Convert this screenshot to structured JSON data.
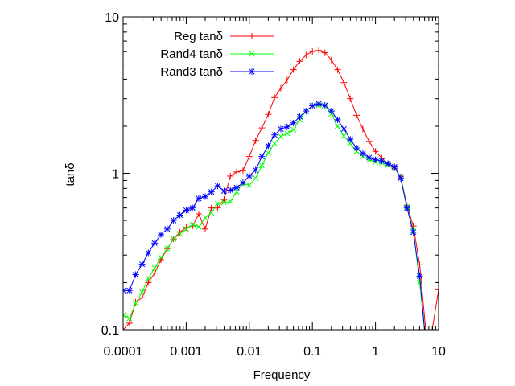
{
  "chart_data": {
    "type": "line",
    "xlabel": "Frequency",
    "ylabel": "tanδ",
    "x_scale": "log",
    "y_scale": "log",
    "xlim": [
      0.0001,
      10
    ],
    "ylim": [
      0.1,
      10
    ],
    "x_ticks": [
      {
        "value": 0.0001,
        "label": "0.0001"
      },
      {
        "value": 0.001,
        "label": "0.001"
      },
      {
        "value": 0.01,
        "label": "0.01"
      },
      {
        "value": 0.1,
        "label": "0.1"
      },
      {
        "value": 1,
        "label": "1"
      },
      {
        "value": 10,
        "label": "10"
      }
    ],
    "y_ticks": [
      {
        "value": 0.1,
        "label": "0.1"
      },
      {
        "value": 1,
        "label": "1"
      },
      {
        "value": 10,
        "label": "10"
      }
    ],
    "legend_position": "top-left",
    "grid": false,
    "series": [
      {
        "name": "Reg tanδ",
        "color": "#ff0000",
        "marker": "plus",
        "x": [
          0.0001,
          0.000126,
          0.000158,
          0.0002,
          0.000251,
          0.000316,
          0.000398,
          0.000501,
          0.000631,
          0.000794,
          0.001,
          0.00126,
          0.00158,
          0.002,
          0.00251,
          0.00316,
          0.00398,
          0.00501,
          0.00631,
          0.00794,
          0.01,
          0.0126,
          0.0158,
          0.02,
          0.0251,
          0.0316,
          0.0398,
          0.0501,
          0.0631,
          0.0794,
          0.1,
          0.126,
          0.158,
          0.2,
          0.251,
          0.316,
          0.398,
          0.501,
          0.631,
          0.794,
          1,
          1.26,
          1.58,
          2,
          2.51,
          3.16,
          3.98,
          5.01,
          6.31,
          7.94,
          10
        ],
        "y": [
          0.1,
          0.11,
          0.15,
          0.16,
          0.2,
          0.23,
          0.28,
          0.33,
          0.38,
          0.42,
          0.45,
          0.46,
          0.55,
          0.44,
          0.6,
          0.6,
          0.68,
          0.96,
          1.02,
          1.04,
          1.28,
          1.62,
          1.95,
          2.38,
          3.05,
          3.5,
          3.95,
          4.6,
          5.2,
          5.7,
          6.0,
          6.1,
          5.9,
          5.3,
          4.6,
          3.8,
          3.0,
          2.35,
          1.92,
          1.6,
          1.38,
          1.25,
          1.15,
          1.08,
          0.95,
          0.62,
          0.46,
          0.26,
          0.096,
          0.1,
          0.18
        ]
      },
      {
        "name": "Rand4 tanδ",
        "color": "#00ff00",
        "marker": "cross",
        "x": [
          0.0001,
          0.000126,
          0.000158,
          0.0002,
          0.000251,
          0.000316,
          0.000398,
          0.000501,
          0.000631,
          0.000794,
          0.001,
          0.00126,
          0.00158,
          0.002,
          0.00251,
          0.00316,
          0.00398,
          0.00501,
          0.00631,
          0.00794,
          0.01,
          0.0126,
          0.0158,
          0.02,
          0.0251,
          0.0316,
          0.0398,
          0.0501,
          0.0631,
          0.0794,
          0.1,
          0.126,
          0.158,
          0.2,
          0.251,
          0.316,
          0.398,
          0.501,
          0.631,
          0.794,
          1,
          1.26,
          1.58,
          2,
          2.51,
          3.16,
          3.98,
          5.01,
          6.31
        ],
        "y": [
          0.124,
          0.118,
          0.148,
          0.174,
          0.213,
          0.248,
          0.29,
          0.33,
          0.38,
          0.41,
          0.44,
          0.47,
          0.455,
          0.52,
          0.56,
          0.64,
          0.65,
          0.66,
          0.76,
          0.86,
          0.84,
          0.93,
          1.12,
          1.35,
          1.55,
          1.72,
          1.8,
          1.9,
          2.2,
          2.5,
          2.7,
          2.72,
          2.7,
          2.4,
          2.0,
          1.73,
          1.55,
          1.38,
          1.28,
          1.22,
          1.18,
          1.17,
          1.13,
          1.08,
          0.95,
          0.61,
          0.43,
          0.2,
          0.08
        ]
      },
      {
        "name": "Rand3 tanδ",
        "color": "#0000ff",
        "marker": "star",
        "x": [
          0.0001,
          0.000126,
          0.000158,
          0.0002,
          0.000251,
          0.000316,
          0.000398,
          0.000501,
          0.000631,
          0.000794,
          0.001,
          0.00126,
          0.00158,
          0.002,
          0.00251,
          0.00316,
          0.00398,
          0.00501,
          0.00631,
          0.00794,
          0.01,
          0.0126,
          0.0158,
          0.02,
          0.0251,
          0.0316,
          0.0398,
          0.0501,
          0.0631,
          0.0794,
          0.1,
          0.126,
          0.158,
          0.2,
          0.251,
          0.316,
          0.398,
          0.501,
          0.631,
          0.794,
          1,
          1.26,
          1.58,
          2,
          2.51,
          3.16,
          3.98,
          5.01,
          6.31
        ],
        "y": [
          0.178,
          0.178,
          0.225,
          0.262,
          0.31,
          0.358,
          0.405,
          0.44,
          0.5,
          0.54,
          0.58,
          0.6,
          0.69,
          0.71,
          0.76,
          0.83,
          0.77,
          0.78,
          0.81,
          0.87,
          0.96,
          1.05,
          1.28,
          1.5,
          1.76,
          1.92,
          1.98,
          2.1,
          2.3,
          2.5,
          2.7,
          2.78,
          2.72,
          2.5,
          2.2,
          1.92,
          1.65,
          1.45,
          1.34,
          1.26,
          1.22,
          1.2,
          1.15,
          1.1,
          0.93,
          0.6,
          0.42,
          0.22,
          0.08
        ]
      }
    ]
  }
}
